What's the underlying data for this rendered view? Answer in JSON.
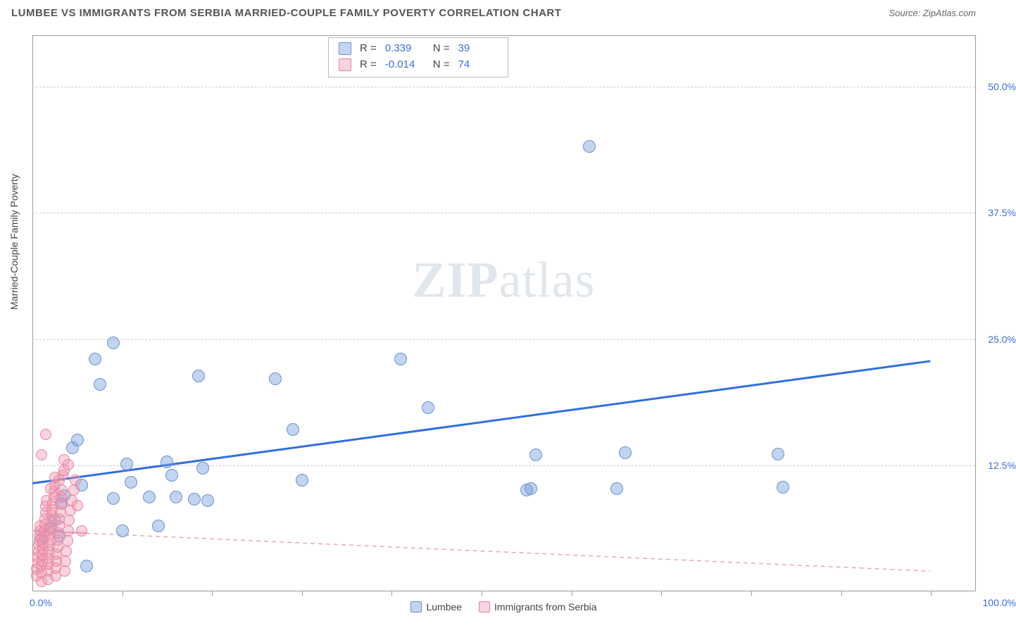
{
  "header": {
    "title": "LUMBEE VS IMMIGRANTS FROM SERBIA MARRIED-COUPLE FAMILY POVERTY CORRELATION CHART",
    "source_label": "Source: ZipAtlas.com"
  },
  "watermark": "ZIPatlas",
  "y_axis": {
    "label": "Married-Couple Family Poverty",
    "ticks": [
      {
        "v": 12.5,
        "label": "12.5%"
      },
      {
        "v": 25.0,
        "label": "25.0%"
      },
      {
        "v": 37.5,
        "label": "37.5%"
      },
      {
        "v": 50.0,
        "label": "50.0%"
      }
    ],
    "min": 0,
    "max": 55
  },
  "x_axis": {
    "min": 0,
    "max": 105,
    "origin_label": "0.0%",
    "max_label": "100.0%",
    "tick_positions": [
      10,
      20,
      30,
      40,
      50,
      60,
      70,
      80,
      90,
      100
    ]
  },
  "series": [
    {
      "name": "Lumbee",
      "fill": "rgba(120,160,220,0.45)",
      "stroke": "#6a93cf",
      "marker_r": 9,
      "r_value": "0.339",
      "n_value": "39",
      "trend": {
        "x1": 0,
        "y1": 10.7,
        "x2": 100,
        "y2": 22.8,
        "stroke": "#2f6fe0",
        "width": 3,
        "dash": "none"
      },
      "points": [
        [
          1,
          5.2
        ],
        [
          6,
          2.5
        ],
        [
          2,
          6.3
        ],
        [
          2.5,
          7.0
        ],
        [
          3.0,
          5.5
        ],
        [
          3.2,
          8.7
        ],
        [
          3.5,
          9.5
        ],
        [
          4.5,
          14.2
        ],
        [
          5.0,
          15.0
        ],
        [
          5.5,
          10.5
        ],
        [
          9.0,
          9.2
        ],
        [
          10.0,
          6.0
        ],
        [
          7.0,
          23.0
        ],
        [
          9.0,
          24.6
        ],
        [
          7.5,
          20.5
        ],
        [
          11.0,
          10.8
        ],
        [
          10.5,
          12.6
        ],
        [
          13.0,
          9.3
        ],
        [
          14.0,
          6.5
        ],
        [
          15.0,
          12.8
        ],
        [
          15.5,
          11.5
        ],
        [
          16.0,
          9.3
        ],
        [
          18.0,
          9.1
        ],
        [
          18.5,
          21.3
        ],
        [
          19.0,
          12.2
        ],
        [
          19.5,
          9.0
        ],
        [
          27.0,
          21.0
        ],
        [
          29.0,
          16.0
        ],
        [
          30.0,
          11.0
        ],
        [
          41.0,
          23.0
        ],
        [
          44.0,
          18.2
        ],
        [
          55.0,
          10.0
        ],
        [
          55.5,
          10.2
        ],
        [
          56.0,
          13.5
        ],
        [
          62.0,
          44.0
        ],
        [
          65.0,
          10.2
        ],
        [
          66.0,
          13.7
        ],
        [
          83.0,
          13.6
        ],
        [
          83.5,
          10.3
        ]
      ]
    },
    {
      "name": "Immigrants from Serbia",
      "fill": "rgba(240,150,175,0.42)",
      "stroke": "#e385a2",
      "marker_r": 8,
      "r_value": "-0.014",
      "n_value": "74",
      "trend": {
        "x1": 0,
        "y1": 6.0,
        "x2": 100,
        "y2": 2.0,
        "stroke": "#e9a6b8",
        "width": 1.5,
        "dash": "6,5"
      },
      "trend_solid_until": 6,
      "points": [
        [
          0.5,
          1.5
        ],
        [
          0.5,
          2.2
        ],
        [
          0.6,
          2.8
        ],
        [
          0.6,
          3.4
        ],
        [
          0.7,
          4.0
        ],
        [
          0.7,
          4.6
        ],
        [
          0.8,
          5.0
        ],
        [
          0.8,
          5.5
        ],
        [
          0.9,
          6.0
        ],
        [
          0.9,
          6.5
        ],
        [
          1.0,
          1.0
        ],
        [
          1.0,
          1.8
        ],
        [
          1.0,
          2.5
        ],
        [
          1.1,
          3.0
        ],
        [
          1.1,
          3.6
        ],
        [
          1.2,
          4.2
        ],
        [
          1.2,
          4.8
        ],
        [
          1.3,
          5.4
        ],
        [
          1.3,
          6.0
        ],
        [
          1.4,
          6.6
        ],
        [
          1.4,
          7.2
        ],
        [
          1.5,
          7.8
        ],
        [
          1.5,
          8.4
        ],
        [
          1.6,
          9.0
        ],
        [
          1.7,
          1.2
        ],
        [
          1.7,
          2.0
        ],
        [
          1.8,
          2.7
        ],
        [
          1.8,
          3.3
        ],
        [
          1.9,
          3.9
        ],
        [
          1.9,
          4.5
        ],
        [
          2.0,
          5.1
        ],
        [
          2.0,
          5.7
        ],
        [
          2.1,
          6.3
        ],
        [
          2.1,
          6.9
        ],
        [
          2.2,
          7.5
        ],
        [
          2.2,
          8.1
        ],
        [
          2.3,
          8.7
        ],
        [
          2.4,
          9.3
        ],
        [
          2.4,
          9.9
        ],
        [
          2.5,
          10.5
        ],
        [
          2.6,
          1.5
        ],
        [
          2.6,
          2.3
        ],
        [
          2.7,
          3.0
        ],
        [
          2.7,
          3.7
        ],
        [
          2.8,
          4.4
        ],
        [
          2.8,
          5.1
        ],
        [
          2.9,
          5.8
        ],
        [
          3.0,
          6.5
        ],
        [
          3.0,
          7.2
        ],
        [
          3.1,
          7.9
        ],
        [
          3.2,
          8.6
        ],
        [
          3.2,
          9.3
        ],
        [
          3.3,
          10.0
        ],
        [
          3.4,
          11.5
        ],
        [
          3.5,
          13.0
        ],
        [
          3.6,
          2.0
        ],
        [
          3.7,
          3.0
        ],
        [
          3.8,
          4.0
        ],
        [
          3.9,
          5.0
        ],
        [
          4.0,
          6.0
        ],
        [
          4.1,
          7.0
        ],
        [
          4.2,
          8.0
        ],
        [
          4.4,
          9.0
        ],
        [
          4.6,
          10.0
        ],
        [
          4.8,
          11.0
        ],
        [
          1.0,
          13.5
        ],
        [
          1.5,
          15.5
        ],
        [
          3.0,
          11.0
        ],
        [
          3.5,
          12.0
        ],
        [
          2.0,
          10.2
        ],
        [
          2.5,
          11.3
        ],
        [
          4.0,
          12.5
        ],
        [
          5.0,
          8.5
        ],
        [
          5.5,
          6.0
        ]
      ]
    }
  ],
  "stats_box": {
    "rows": [
      {
        "swatch_fill": "rgba(120,160,220,0.45)",
        "swatch_stroke": "#6a93cf",
        "r": "0.339",
        "n": "39"
      },
      {
        "swatch_fill": "rgba(240,150,175,0.42)",
        "swatch_stroke": "#e385a2",
        "r": "-0.014",
        "n": "74"
      }
    ],
    "r_label": "R",
    "eq": "=",
    "n_label": "N"
  },
  "legend": {
    "items": [
      {
        "label": "Lumbee",
        "fill": "rgba(120,160,220,0.45)",
        "stroke": "#6a93cf"
      },
      {
        "label": "Immigrants from Serbia",
        "fill": "rgba(240,150,175,0.42)",
        "stroke": "#e385a2"
      }
    ]
  }
}
